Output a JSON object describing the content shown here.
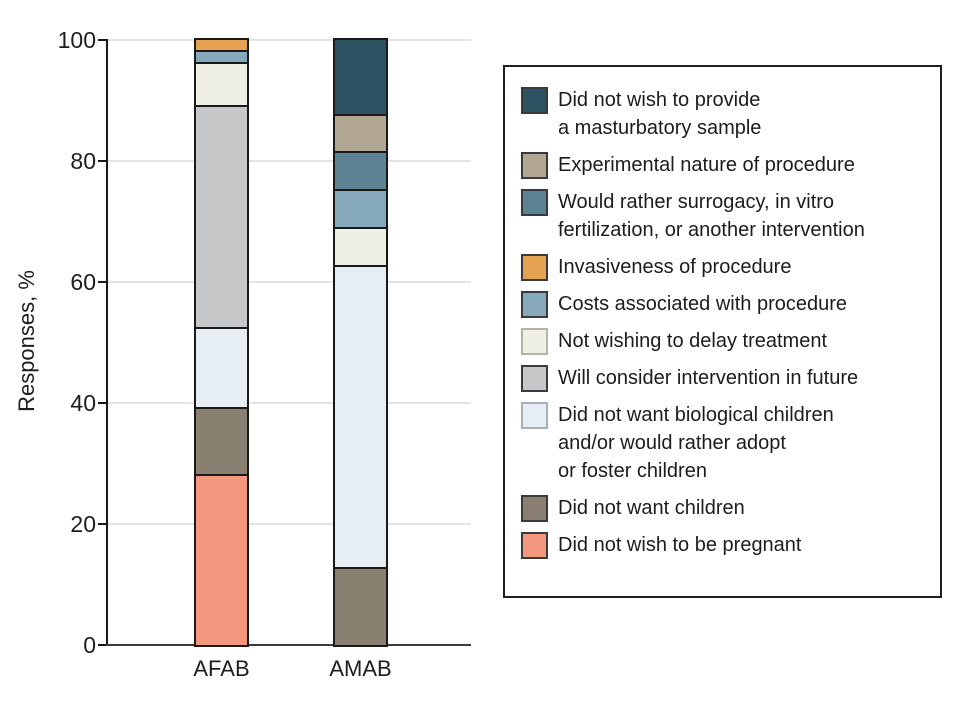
{
  "figure": {
    "background": "#ffffff"
  },
  "chart_data": {
    "type": "bar",
    "stacked": true,
    "orientation": "vertical",
    "title": "",
    "xlabel": "",
    "ylabel": "Responses, %",
    "categories": [
      "AFAB",
      "AMAB"
    ],
    "y_axis": {
      "min": 0,
      "max": 100,
      "ticks": [
        0,
        20,
        40,
        60,
        80,
        100
      ]
    },
    "grid": "horizontal-light",
    "legend_position": "right",
    "series": [
      {
        "key": "pregnant",
        "label": "Did not wish to be pregnant",
        "color": "#f3977f",
        "values": [
          28,
          0
        ]
      },
      {
        "key": "no_children",
        "label": "Did not want children",
        "color": "#8a8072",
        "values": [
          11,
          12.5
        ]
      },
      {
        "key": "no_bio_children",
        "label": "Did not want biological children and/or would rather adopt or foster children",
        "color": "#e6eef3",
        "values": [
          13.3,
          50
        ],
        "swatch_border": "#a7b0b6"
      },
      {
        "key": "future",
        "label": "Will consider intervention in future",
        "color": "#c6c7c9",
        "values": [
          36.7,
          0
        ]
      },
      {
        "key": "delay",
        "label": "Not wishing to delay treatment",
        "color": "#f0efe3",
        "values": [
          7,
          6.25
        ],
        "swatch_border": "#b3b3a6"
      },
      {
        "key": "costs",
        "label": "Costs associated with procedure",
        "color": "#85a9bb",
        "values": [
          2,
          6.25
        ]
      },
      {
        "key": "invasive",
        "label": "Invasiveness of procedure",
        "color": "#e6a253",
        "values": [
          2,
          0
        ]
      },
      {
        "key": "surrogacy",
        "label": "Would rather surrogacy, in vitro fertilization, or another intervention",
        "color": "#5d8294",
        "values": [
          0,
          6.25
        ]
      },
      {
        "key": "experimental",
        "label": "Experimental nature of procedure",
        "color": "#b2a793",
        "values": [
          0,
          6.25
        ]
      },
      {
        "key": "sample",
        "label": "Did not wish to provide a masturbatory sample",
        "color": "#2d5363",
        "values": [
          0,
          12.5
        ]
      }
    ],
    "colors": {
      "bar_border": "#1a1a1a",
      "gridline": "#e4e4e4",
      "axis": "#1a1a1a",
      "text": "#1d1d1d"
    }
  },
  "legend": {
    "items": [
      {
        "series": "sample",
        "lines": [
          "Did not wish to provide",
          "a masturbatory sample"
        ]
      },
      {
        "series": "experimental",
        "lines": [
          "Experimental nature of procedure"
        ]
      },
      {
        "series": "surrogacy",
        "lines": [
          "Would rather surrogacy, in vitro",
          "fertilization, or another intervention"
        ]
      },
      {
        "series": "invasive",
        "lines": [
          "Invasiveness of procedure"
        ]
      },
      {
        "series": "costs",
        "lines": [
          "Costs associated with procedure"
        ]
      },
      {
        "series": "delay",
        "lines": [
          "Not wishing to delay treatment"
        ]
      },
      {
        "series": "future",
        "lines": [
          "Will consider intervention in future"
        ]
      },
      {
        "series": "no_bio_children",
        "lines": [
          "Did not want biological children",
          "and/or would rather adopt",
          "or foster children"
        ]
      },
      {
        "series": "no_children",
        "lines": [
          "Did not want children"
        ]
      },
      {
        "series": "pregnant",
        "lines": [
          "Did not wish to be pregnant"
        ]
      }
    ]
  }
}
